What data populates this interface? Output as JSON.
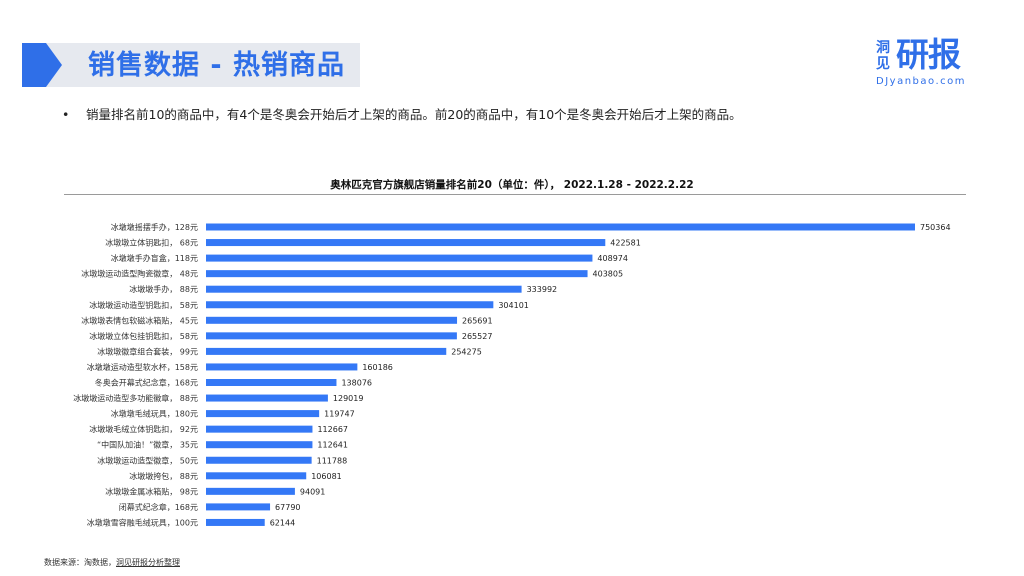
{
  "header": {
    "title": "销售数据 - 热销商品"
  },
  "logo": {
    "small": "洞见",
    "big": "研报",
    "url": "DJyanbao.com"
  },
  "bullet": {
    "text": "销量排名前10的商品中，有4个是冬奥会开始后才上架的商品。前20的商品中，有10个是冬奥会开始后才上架的商品。"
  },
  "chart_data": {
    "type": "bar",
    "orientation": "horizontal",
    "title": "奥林匹克官方旗舰店销量排名前20（单位：件）， 2022.1.28 - 2022.2.22",
    "categories": [
      "冰墩墩摇摆手办，128元",
      "冰墩墩立体钥匙扣， 68元",
      "冰墩墩手办盲盒，118元",
      "冰墩墩运动造型陶瓷徽章， 48元",
      "冰墩墩手办， 88元",
      "冰墩墩运动造型钥匙扣， 58元",
      "冰墩墩表情包软磁冰箱贴， 45元",
      "冰墩墩立体包挂钥匙扣， 58元",
      "冰墩墩徽章组合套装， 99元",
      "冰墩墩运动造型软水杯，158元",
      "冬奥会开幕式纪念章，168元",
      "冰墩墩运动造型多功能徽章， 88元",
      "冰墩墩毛绒玩具，180元",
      "冰墩墩毛绒立体钥匙扣， 92元",
      "“中国队加油！”徽章， 35元",
      "冰墩墩运动造型徽章， 50元",
      "冰墩墩挎包， 88元",
      "冰墩墩金属冰箱贴， 98元",
      "闭幕式纪念章，168元",
      "冰墩墩雪容融毛绒玩具，100元"
    ],
    "values": [
      750364,
      422581,
      408974,
      403805,
      333992,
      304101,
      265691,
      265527,
      254275,
      160186,
      138076,
      129019,
      119747,
      112667,
      112641,
      111788,
      106081,
      94091,
      67790,
      62144
    ],
    "xlim": [
      0,
      760000
    ],
    "bar_color": "#3478f6",
    "grid": false,
    "legend": "none",
    "data_labels": true
  },
  "footer": {
    "source_label": "数据来源：淘数据，",
    "source_link": "洞见研报分析整理"
  }
}
